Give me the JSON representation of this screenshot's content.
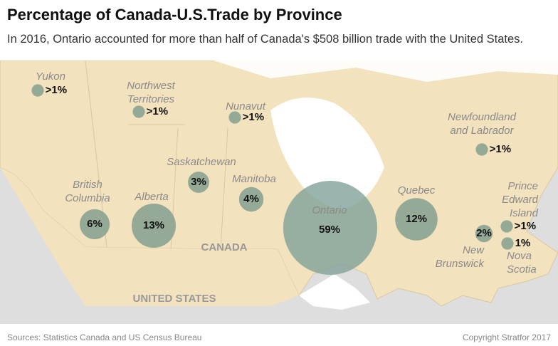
{
  "title": "Percentage of Canada-U.S.Trade by Province",
  "subtitle": "In 2016, Ontario accounted for more than half of Canada's $508 billion trade with the United States.",
  "country_labels": [
    "CANADA",
    "UNITED STATES"
  ],
  "regions": [
    {
      "name": [
        "Yukon"
      ],
      "value": 1,
      "value_label": ">1%"
    },
    {
      "name": [
        "Northwest",
        "Territories"
      ],
      "value": 1,
      "value_label": ">1%"
    },
    {
      "name": [
        "Nunavut"
      ],
      "value": 1,
      "value_label": ">1%"
    },
    {
      "name": [
        "Newfoundland",
        "and Labrador"
      ],
      "value": 1,
      "value_label": ">1%"
    },
    {
      "name": [
        "Saskatchewan"
      ],
      "value": 3,
      "value_label": "3%"
    },
    {
      "name": [
        "Manitoba"
      ],
      "value": 4,
      "value_label": "4%"
    },
    {
      "name": [
        "British",
        "Columbia"
      ],
      "value": 6,
      "value_label": "6%"
    },
    {
      "name": [
        "Alberta"
      ],
      "value": 13,
      "value_label": "13%"
    },
    {
      "name": [
        "Ontario"
      ],
      "value": 59,
      "value_label": "59%"
    },
    {
      "name": [
        "Quebec"
      ],
      "value": 12,
      "value_label": "12%"
    },
    {
      "name": [
        "New",
        "Brunswick"
      ],
      "value": 2,
      "value_label": "2%"
    },
    {
      "name": [
        "Prince",
        "Edward",
        "Island"
      ],
      "value": 1,
      "value_label": ">1%"
    },
    {
      "name": [
        "Nova",
        "Scotia"
      ],
      "value": 1,
      "value_label": "1%"
    }
  ],
  "sources": "Sources: Statistics Canada and US Census Bureau",
  "copyright": "Copyright Stratfor 2017"
}
